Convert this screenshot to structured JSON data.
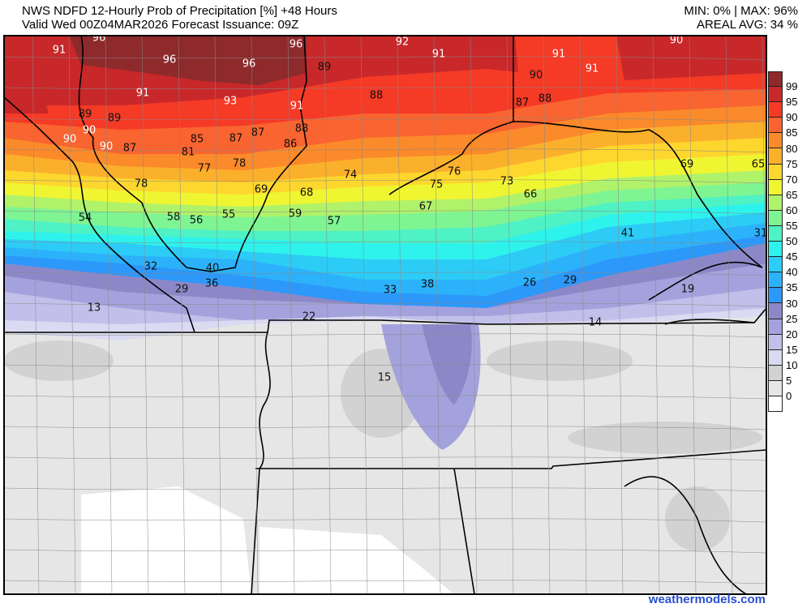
{
  "header": {
    "title": "NWS NDFD 12-Hourly Prob of Precipitation [%] +48 Hours",
    "subtitle": "Valid Wed 00Z04MAR2026   Forecast Issuance: 09Z",
    "minmax": "MIN: 0% | MAX: 96%",
    "areal_avg": "AREAL AVG: 34 %"
  },
  "legend": {
    "ticks": [
      "99",
      "95",
      "90",
      "85",
      "80",
      "75",
      "70",
      "65",
      "60",
      "55",
      "50",
      "45",
      "40",
      "35",
      "30",
      "25",
      "20",
      "15",
      "10",
      "5",
      "0"
    ],
    "colors": [
      "#8e2a2c",
      "#c8282a",
      "#f53a26",
      "#f96430",
      "#fb8a2a",
      "#fbb02c",
      "#fdd62e",
      "#f0f532",
      "#b0f26a",
      "#7ef592",
      "#4ef2c4",
      "#2ef2ec",
      "#2cccf6",
      "#2cb2fa",
      "#2c98fa",
      "#8c88c8",
      "#a4a2dc",
      "#c2c0ea",
      "#dadaf2",
      "#d2d2d2",
      "#e6e6e6",
      "#ffffff"
    ]
  },
  "map_labels": [
    "96",
    "91",
    "96",
    "96",
    "96",
    "92",
    "91",
    "90",
    "91",
    "91",
    "89",
    "90",
    "91",
    "93",
    "91",
    "88",
    "87",
    "88",
    "89",
    "89",
    "90",
    "90",
    "90",
    "87",
    "85",
    "87",
    "87",
    "88",
    "86",
    "81",
    "77",
    "78",
    "74",
    "76",
    "75",
    "73",
    "66",
    "69",
    "65",
    "78",
    "69",
    "68",
    "54",
    "58",
    "56",
    "55",
    "59",
    "57",
    "67",
    "41",
    "31",
    "32",
    "40",
    "36",
    "29",
    "33",
    "38",
    "26",
    "29",
    "19",
    "13",
    "22",
    "14",
    "15"
  ],
  "footer": "weathermodels.com"
}
